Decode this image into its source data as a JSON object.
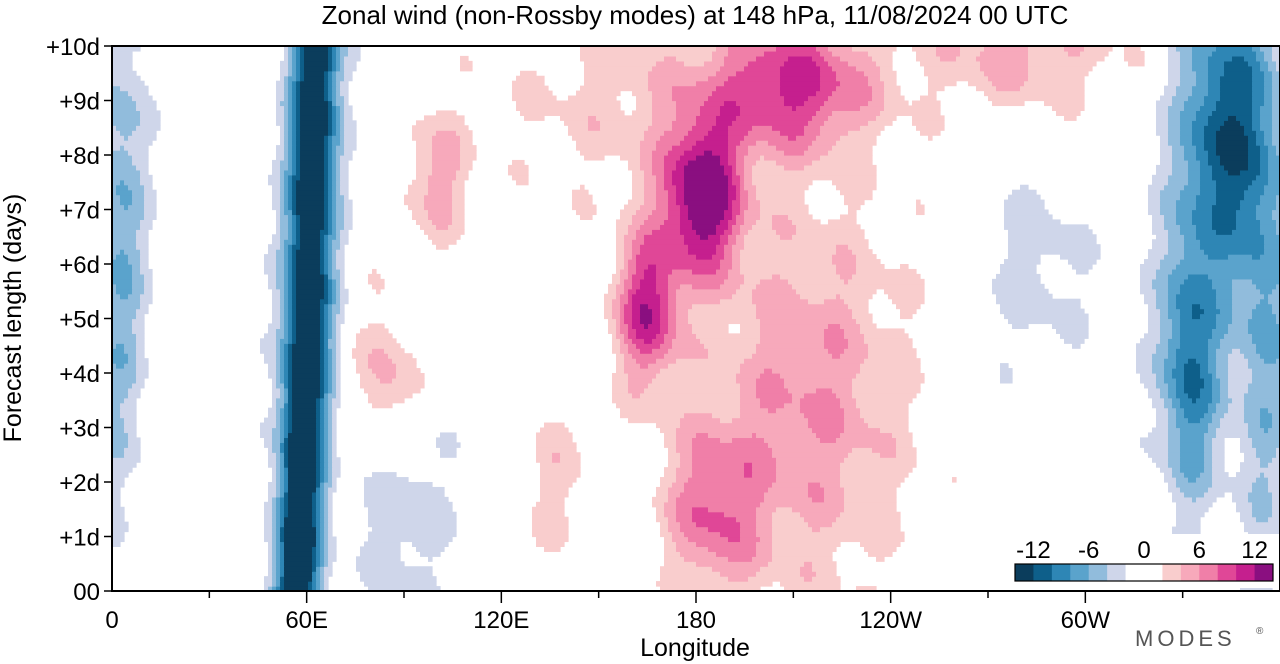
{
  "chart_data": {
    "type": "heatmap",
    "title": "Zonal wind (non-Rossby modes) at 148 hPa,  11/08/2024  00 UTC",
    "xlabel": "Longitude",
    "ylabel": "Forecast length (days)",
    "x_ticks": [
      "0",
      "60E",
      "120E",
      "180",
      "120W",
      "60W"
    ],
    "x_tick_values": [
      0,
      60,
      120,
      180,
      240,
      300
    ],
    "xlim": [
      0,
      360
    ],
    "y_ticks": [
      "00",
      "+1d",
      "+2d",
      "+3d",
      "+4d",
      "+5d",
      "+6d",
      "+7d",
      "+8d",
      "+9d",
      "+10d"
    ],
    "y_tick_values": [
      0,
      1,
      2,
      3,
      4,
      5,
      6,
      7,
      8,
      9,
      10
    ],
    "ylim": [
      0,
      10
    ],
    "colorbar": {
      "labels": [
        "-12",
        "-6",
        "0",
        "6",
        "12"
      ],
      "label_values": [
        -12,
        -6,
        0,
        6,
        12
      ],
      "levels": [
        -14,
        -12,
        -10,
        -8,
        -6,
        -4,
        -2,
        2,
        4,
        6,
        8,
        10,
        12,
        14
      ],
      "colors": [
        "#0b3d5c",
        "#0e5f8a",
        "#2e86b5",
        "#5aa3cc",
        "#91bcdc",
        "#cfd6ea",
        "#ffffff",
        "#f9cdcd",
        "#f7a9bb",
        "#f07fa8",
        "#e04797",
        "#c51f8e",
        "#8a0f80"
      ]
    },
    "features": [
      {
        "name": "negative band near 60E",
        "lon": [
          50,
          65
        ],
        "days": [
          0,
          10
        ],
        "min_value": -14
      },
      {
        "name": "negative region near 60W",
        "lon": [
          320,
          355
        ],
        "days": [
          0,
          10
        ],
        "min_value": -12
      },
      {
        "name": "positive maximum near 180",
        "lon": [
          170,
          200
        ],
        "days": [
          4,
          10
        ],
        "max_value": 13
      }
    ]
  },
  "logo": {
    "text": "MODES"
  }
}
